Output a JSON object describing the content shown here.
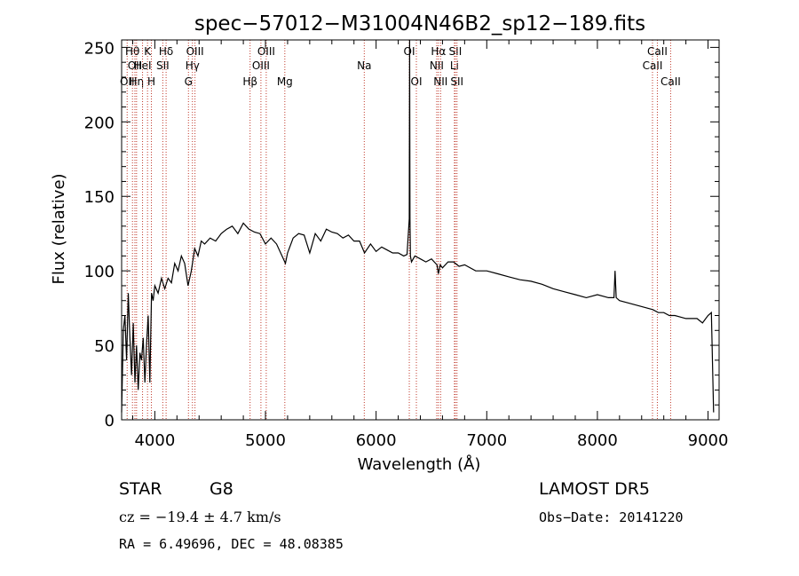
{
  "chart_data": {
    "type": "line",
    "title": "spec−57012−M31004N46B2_sp12−189.fits",
    "xlabel": "Wavelength (Å)",
    "ylabel": "Flux (relative)",
    "xlim": [
      3700,
      9100
    ],
    "ylim": [
      0,
      255
    ],
    "xticks": [
      4000,
      5000,
      6000,
      7000,
      8000,
      9000
    ],
    "yticks": [
      0,
      50,
      100,
      150,
      200,
      250
    ],
    "grid": false,
    "series": [
      {
        "x": [
          3700,
          3715,
          3730,
          3745,
          3760,
          3775,
          3790,
          3805,
          3820,
          3835,
          3850,
          3865,
          3880,
          3895,
          3910,
          3925,
          3940,
          3955,
          3970,
          3985,
          4000,
          4030,
          4060,
          4090,
          4120,
          4150,
          4180,
          4210,
          4240,
          4270,
          4300,
          4330,
          4360,
          4390,
          4420,
          4450,
          4500,
          4550,
          4600,
          4650,
          4700,
          4750,
          4800,
          4850,
          4900,
          4950,
          5000,
          5050,
          5100,
          5150,
          5180,
          5200,
          5250,
          5300,
          5350,
          5400,
          5450,
          5500,
          5550,
          5600,
          5650,
          5700,
          5750,
          5800,
          5850,
          5895,
          5950,
          6000,
          6050,
          6100,
          6150,
          6200,
          6250,
          6280,
          6300,
          6303,
          6306,
          6310,
          6320,
          6350,
          6400,
          6450,
          6500,
          6550,
          6563,
          6580,
          6600,
          6650,
          6700,
          6750,
          6800,
          6900,
          7000,
          7100,
          7200,
          7300,
          7400,
          7500,
          7600,
          7700,
          7800,
          7900,
          8000,
          8100,
          8150,
          8160,
          8170,
          8200,
          8300,
          8400,
          8500,
          8550,
          8600,
          8650,
          8700,
          8800,
          8900,
          8950,
          9000,
          9030,
          9050
        ],
        "values": [
          5,
          60,
          70,
          40,
          85,
          55,
          30,
          65,
          25,
          50,
          20,
          45,
          40,
          55,
          25,
          50,
          70,
          25,
          85,
          80,
          90,
          85,
          95,
          88,
          95,
          92,
          105,
          100,
          110,
          105,
          90,
          100,
          115,
          110,
          120,
          118,
          122,
          120,
          125,
          128,
          130,
          125,
          132,
          128,
          126,
          125,
          118,
          122,
          118,
          110,
          105,
          112,
          122,
          125,
          124,
          112,
          125,
          120,
          128,
          126,
          125,
          122,
          124,
          120,
          120,
          112,
          118,
          113,
          116,
          114,
          112,
          112,
          110,
          111,
          135,
          260,
          135,
          110,
          106,
          110,
          108,
          106,
          108,
          104,
          98,
          104,
          102,
          106,
          106,
          103,
          104,
          100,
          100,
          98,
          96,
          94,
          93,
          91,
          88,
          86,
          84,
          82,
          84,
          82,
          82,
          100,
          82,
          80,
          78,
          76,
          74,
          72,
          72,
          70,
          70,
          68,
          68,
          65,
          70,
          72,
          5
        ]
      }
    ],
    "line_markers": [
      {
        "wave": 3750,
        "label": "OII",
        "row": 3
      },
      {
        "wave": 3798,
        "label": "Hθ",
        "row": 1
      },
      {
        "wave": 3820,
        "label": "OII",
        "row": 2
      },
      {
        "wave": 3835,
        "label": "Hη",
        "row": 3
      },
      {
        "wave": 3889,
        "label": "HeI",
        "row": 2
      },
      {
        "wave": 3934,
        "label": "K",
        "row": 1
      },
      {
        "wave": 3969,
        "label": "H",
        "row": 3
      },
      {
        "wave": 4072,
        "label": "SII",
        "row": 2
      },
      {
        "wave": 4102,
        "label": "Hδ",
        "row": 1
      },
      {
        "wave": 4304,
        "label": "G",
        "row": 3
      },
      {
        "wave": 4340,
        "label": "Hγ",
        "row": 2
      },
      {
        "wave": 4363,
        "label": "OIII",
        "row": 1
      },
      {
        "wave": 4861,
        "label": "Hβ",
        "row": 3
      },
      {
        "wave": 4959,
        "label": "OIII",
        "row": 2
      },
      {
        "wave": 5007,
        "label": "OIII",
        "row": 1
      },
      {
        "wave": 5175,
        "label": "Mg",
        "row": 3
      },
      {
        "wave": 5893,
        "label": "Na",
        "row": 2
      },
      {
        "wave": 6300,
        "label": "OI",
        "row": 1
      },
      {
        "wave": 6364,
        "label": "OI",
        "row": 3
      },
      {
        "wave": 6548,
        "label": "NII",
        "row": 2
      },
      {
        "wave": 6563,
        "label": "Hα",
        "row": 1
      },
      {
        "wave": 6583,
        "label": "NII",
        "row": 3
      },
      {
        "wave": 6708,
        "label": "Li",
        "row": 2
      },
      {
        "wave": 6716,
        "label": "SII",
        "row": 1
      },
      {
        "wave": 6731,
        "label": "SII",
        "row": 3
      },
      {
        "wave": 8498,
        "label": "CaII",
        "row": 2
      },
      {
        "wave": 8542,
        "label": "CaII",
        "row": 1
      },
      {
        "wave": 8662,
        "label": "CaII",
        "row": 3
      }
    ]
  },
  "info": {
    "class_label": "STAR",
    "subclass": "G8",
    "survey": "LAMOST DR5",
    "cz": "cz = −19.4 ± 4.7 km/s",
    "obs_date": "Obs−Date: 20141220",
    "coords": "RA =    6.49696, DEC =  48.08385"
  }
}
